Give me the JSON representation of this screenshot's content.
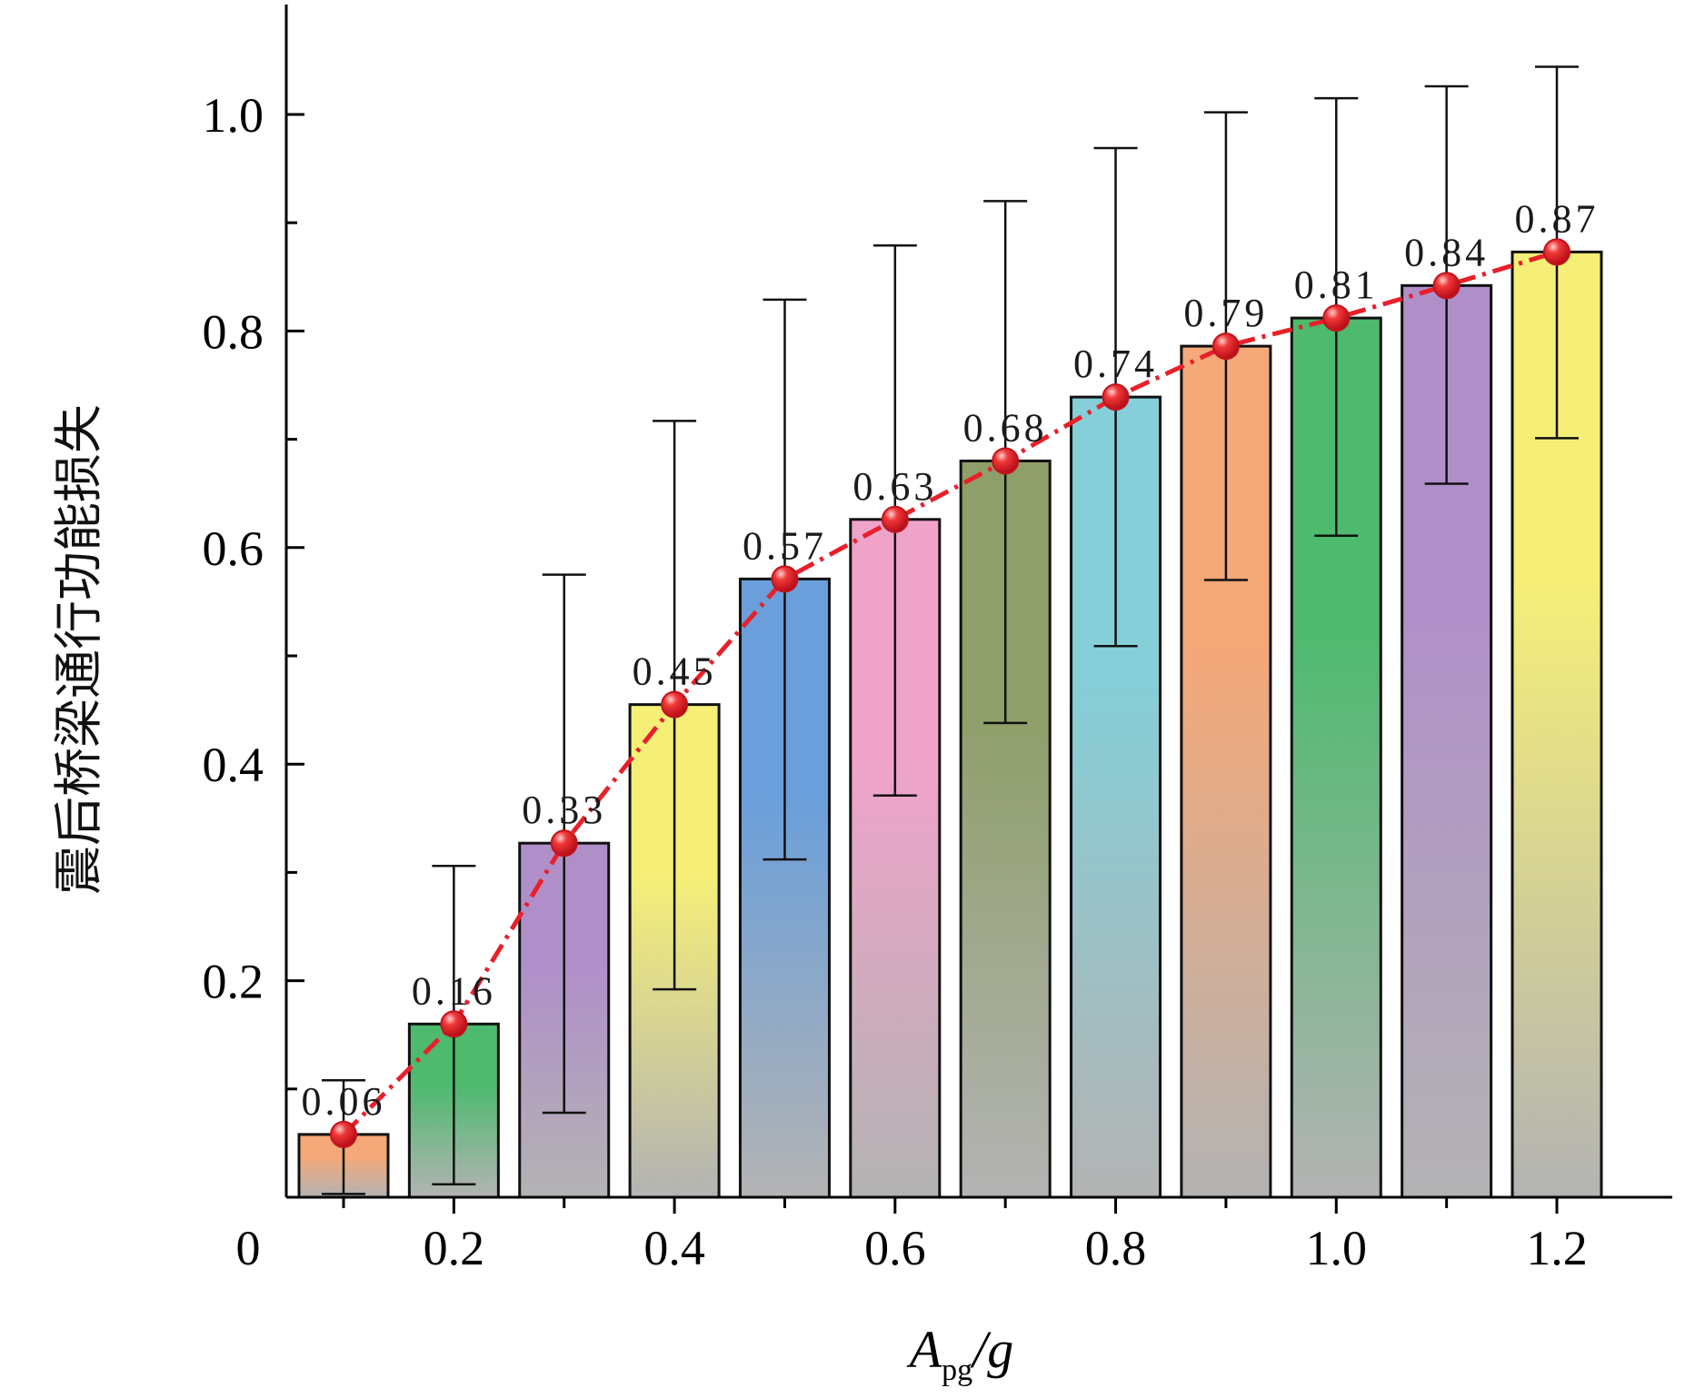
{
  "chart_data": {
    "type": "bar",
    "ylabel": "震后桥梁通行功能损失",
    "xlabel": {
      "main": "A",
      "sub": "pg",
      "suffix": "/g"
    },
    "x_ticks": [
      "0",
      "0.2",
      "0.4",
      "0.6",
      "0.8",
      "1.0",
      "1.2"
    ],
    "y_ticks": [
      "0.2",
      "0.4",
      "0.6",
      "0.8",
      "1.0"
    ],
    "xlim": [
      0,
      1.3
    ],
    "ylim": [
      0,
      1.1
    ],
    "x": [
      0.1,
      0.2,
      0.3,
      0.4,
      0.5,
      0.6,
      0.7,
      0.8,
      0.9,
      1.0,
      1.1,
      1.2
    ],
    "values": [
      0.058,
      0.16,
      0.327,
      0.455,
      0.571,
      0.626,
      0.68,
      0.739,
      0.786,
      0.812,
      0.842,
      0.873
    ],
    "data_labels": [
      "0.06",
      "0.16",
      "0.33",
      "0.45",
      "0.57",
      "0.63",
      "0.68",
      "0.74",
      "0.79",
      "0.81",
      "0.84",
      "0.87"
    ],
    "error_low": [
      0.003,
      0.012,
      0.078,
      0.192,
      0.312,
      0.371,
      0.438,
      0.509,
      0.57,
      0.611,
      0.659,
      0.701
    ],
    "error_high": [
      0.108,
      0.306,
      0.575,
      0.717,
      0.829,
      0.879,
      0.92,
      0.969,
      1.002,
      1.015,
      1.026,
      1.044
    ],
    "bar_colors": [
      "#f5a878",
      "#4dba6e",
      "#b08fc9",
      "#f5ef78",
      "#6a9fdb",
      "#f0a3c9",
      "#8f9f6a",
      "#85cfd8",
      "#f5a878",
      "#4dba6e",
      "#b08fc9",
      "#f5ef78"
    ],
    "line_color": "#e8202a",
    "bar_fade_color": "#b3b3b3",
    "grid": false
  }
}
